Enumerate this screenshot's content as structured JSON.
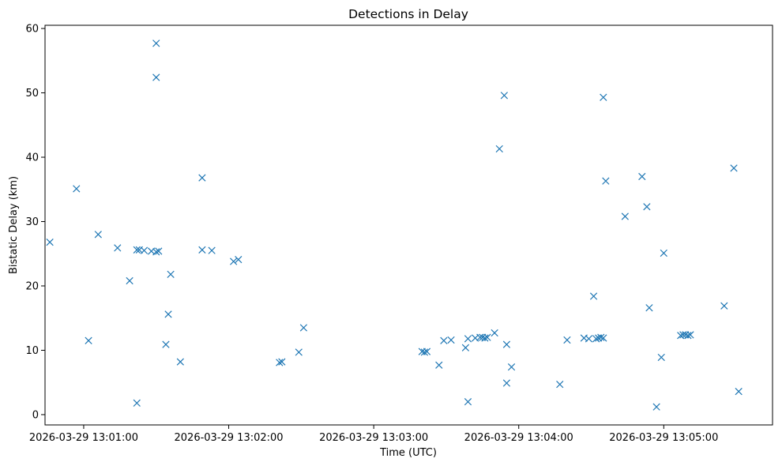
{
  "chart_data": {
    "type": "scatter",
    "title": "Detections in Delay",
    "xlabel": "Time (UTC)",
    "ylabel": "Bistatic Delay (km)",
    "x_format": "YYYY-MM-DD HH:MM:SS",
    "x_ticks": [
      "2026-03-29 13:01:00",
      "2026-03-29 13:02:00",
      "2026-03-29 13:03:00",
      "2026-03-29 13:04:00",
      "2026-03-29 13:05:00"
    ],
    "y_ticks": [
      0,
      10,
      20,
      30,
      40,
      50,
      60
    ],
    "xlim": [
      "2026-03-29 13:00:44",
      "2026-03-29 13:05:45"
    ],
    "ylim": [
      -1.6,
      60.5
    ],
    "marker": "x",
    "color": "#1f77b4",
    "grid": false,
    "series": [
      {
        "x": [
          "2026-03-29 13:00:46",
          "2026-03-29 13:00:57",
          "2026-03-29 13:01:02",
          "2026-03-29 13:01:06",
          "2026-03-29 13:01:14",
          "2026-03-29 13:01:19",
          "2026-03-29 13:01:22",
          "2026-03-29 13:01:23",
          "2026-03-29 13:01:25",
          "2026-03-29 13:01:28",
          "2026-03-29 13:01:30",
          "2026-03-29 13:01:31",
          "2026-03-29 13:01:30",
          "2026-03-29 13:01:30",
          "2026-03-29 13:01:22",
          "2026-03-29 13:01:34",
          "2026-03-29 13:01:35",
          "2026-03-29 13:01:36",
          "2026-03-29 13:01:40",
          "2026-03-29 13:01:49",
          "2026-03-29 13:01:49",
          "2026-03-29 13:01:53",
          "2026-03-29 13:02:02",
          "2026-03-29 13:02:04",
          "2026-03-29 13:02:21",
          "2026-03-29 13:02:22",
          "2026-03-29 13:02:29",
          "2026-03-29 13:02:31",
          "2026-03-29 13:03:20",
          "2026-03-29 13:03:21",
          "2026-03-29 13:03:22",
          "2026-03-29 13:03:27",
          "2026-03-29 13:03:29",
          "2026-03-29 13:03:32",
          "2026-03-29 13:03:38",
          "2026-03-29 13:03:39",
          "2026-03-29 13:03:39",
          "2026-03-29 13:03:42",
          "2026-03-29 13:03:44",
          "2026-03-29 13:03:45",
          "2026-03-29 13:03:46",
          "2026-03-29 13:03:47",
          "2026-03-29 13:03:50",
          "2026-03-29 13:03:52",
          "2026-03-29 13:03:54",
          "2026-03-29 13:03:55",
          "2026-03-29 13:03:55",
          "2026-03-29 13:03:57",
          "2026-03-29 13:04:17",
          "2026-03-29 13:04:20",
          "2026-03-29 13:04:27",
          "2026-03-29 13:04:29",
          "2026-03-29 13:04:31",
          "2026-03-29 13:04:32",
          "2026-03-29 13:04:33",
          "2026-03-29 13:04:34",
          "2026-03-29 13:04:35",
          "2026-03-29 13:04:35",
          "2026-03-29 13:04:36",
          "2026-03-29 13:04:44",
          "2026-03-29 13:04:51",
          "2026-03-29 13:04:53",
          "2026-03-29 13:04:54",
          "2026-03-29 13:04:57",
          "2026-03-29 13:04:59",
          "2026-03-29 13:05:00",
          "2026-03-29 13:05:07",
          "2026-03-29 13:05:08",
          "2026-03-29 13:05:09",
          "2026-03-29 13:05:10",
          "2026-03-29 13:05:11",
          "2026-03-29 13:05:25",
          "2026-03-29 13:05:29",
          "2026-03-29 13:05:31"
        ],
        "y": [
          26.8,
          35.1,
          11.5,
          28.0,
          25.9,
          20.8,
          25.6,
          25.6,
          25.5,
          25.4,
          25.3,
          25.4,
          57.7,
          52.4,
          1.8,
          10.9,
          15.6,
          21.8,
          8.2,
          25.6,
          36.8,
          25.5,
          23.8,
          24.1,
          8.1,
          8.2,
          9.7,
          13.5,
          9.8,
          9.7,
          9.8,
          7.7,
          11.5,
          11.6,
          10.4,
          11.8,
          2.0,
          11.9,
          12.0,
          12.0,
          11.9,
          12.0,
          12.7,
          41.3,
          49.6,
          10.9,
          4.9,
          7.4,
          4.7,
          11.6,
          11.9,
          11.8,
          18.4,
          11.8,
          11.9,
          12.0,
          11.9,
          49.3,
          36.3,
          30.8,
          37.0,
          32.3,
          16.6,
          1.2,
          8.9,
          25.1,
          12.3,
          12.4,
          12.4,
          12.3,
          12.4,
          16.9,
          38.3,
          3.6
        ]
      }
    ]
  }
}
